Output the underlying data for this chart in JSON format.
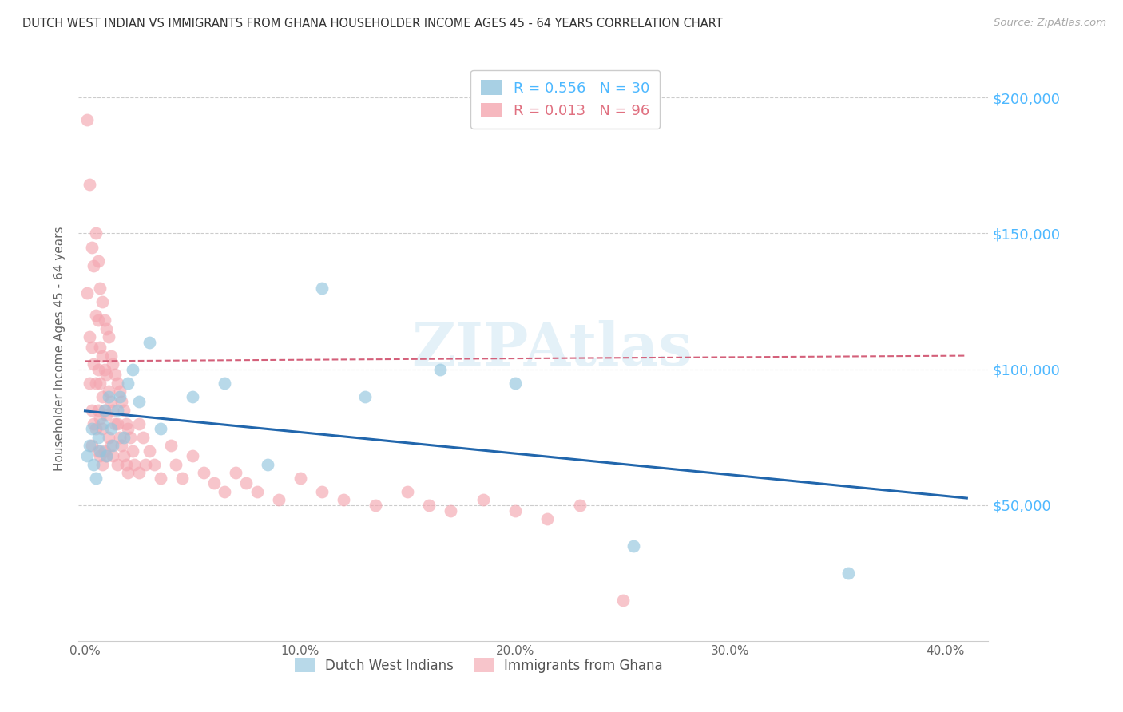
{
  "title": "DUTCH WEST INDIAN VS IMMIGRANTS FROM GHANA HOUSEHOLDER INCOME AGES 45 - 64 YEARS CORRELATION CHART",
  "source": "Source: ZipAtlas.com",
  "ylabel": "Householder Income Ages 45 - 64 years",
  "ytick_labels": [
    "$50,000",
    "$100,000",
    "$150,000",
    "$200,000"
  ],
  "ytick_vals": [
    50000,
    100000,
    150000,
    200000
  ],
  "ylim": [
    0,
    215000
  ],
  "xlim": [
    -0.003,
    0.42
  ],
  "blue_color": "#92c5de",
  "pink_color": "#f4a6b0",
  "blue_line_color": "#2166ac",
  "pink_line_color": "#d4607a",
  "watermark": "ZIPAtlas",
  "blue_R": 0.556,
  "blue_N": 30,
  "pink_R": 0.013,
  "pink_N": 96,
  "blue_x": [
    0.001,
    0.002,
    0.003,
    0.004,
    0.005,
    0.006,
    0.007,
    0.008,
    0.009,
    0.01,
    0.011,
    0.012,
    0.013,
    0.015,
    0.016,
    0.018,
    0.02,
    0.022,
    0.025,
    0.03,
    0.035,
    0.05,
    0.065,
    0.085,
    0.11,
    0.13,
    0.165,
    0.2,
    0.255,
    0.355
  ],
  "blue_y": [
    68000,
    72000,
    78000,
    65000,
    60000,
    75000,
    70000,
    80000,
    85000,
    68000,
    90000,
    78000,
    72000,
    85000,
    90000,
    75000,
    95000,
    100000,
    88000,
    110000,
    78000,
    90000,
    95000,
    65000,
    130000,
    90000,
    100000,
    95000,
    35000,
    25000
  ],
  "pink_x": [
    0.001,
    0.001,
    0.002,
    0.002,
    0.002,
    0.003,
    0.003,
    0.003,
    0.003,
    0.004,
    0.004,
    0.004,
    0.005,
    0.005,
    0.005,
    0.005,
    0.006,
    0.006,
    0.006,
    0.006,
    0.006,
    0.007,
    0.007,
    0.007,
    0.007,
    0.007,
    0.008,
    0.008,
    0.008,
    0.008,
    0.008,
    0.009,
    0.009,
    0.009,
    0.009,
    0.01,
    0.01,
    0.01,
    0.01,
    0.011,
    0.011,
    0.011,
    0.012,
    0.012,
    0.012,
    0.013,
    0.013,
    0.013,
    0.014,
    0.014,
    0.015,
    0.015,
    0.015,
    0.016,
    0.016,
    0.017,
    0.017,
    0.018,
    0.018,
    0.019,
    0.019,
    0.02,
    0.02,
    0.021,
    0.022,
    0.023,
    0.025,
    0.025,
    0.027,
    0.028,
    0.03,
    0.032,
    0.035,
    0.04,
    0.042,
    0.045,
    0.05,
    0.055,
    0.06,
    0.065,
    0.07,
    0.075,
    0.08,
    0.09,
    0.1,
    0.11,
    0.12,
    0.135,
    0.15,
    0.16,
    0.17,
    0.185,
    0.2,
    0.215,
    0.23,
    0.25
  ],
  "pink_y": [
    192000,
    128000,
    168000,
    112000,
    95000,
    145000,
    108000,
    85000,
    72000,
    138000,
    102000,
    80000,
    150000,
    120000,
    95000,
    78000,
    140000,
    118000,
    100000,
    85000,
    70000,
    130000,
    108000,
    95000,
    82000,
    68000,
    125000,
    105000,
    90000,
    78000,
    65000,
    118000,
    100000,
    85000,
    70000,
    115000,
    98000,
    83000,
    68000,
    112000,
    92000,
    75000,
    105000,
    88000,
    72000,
    102000,
    85000,
    68000,
    98000,
    80000,
    95000,
    80000,
    65000,
    92000,
    75000,
    88000,
    72000,
    85000,
    68000,
    80000,
    65000,
    78000,
    62000,
    75000,
    70000,
    65000,
    80000,
    62000,
    75000,
    65000,
    70000,
    65000,
    60000,
    72000,
    65000,
    60000,
    68000,
    62000,
    58000,
    55000,
    62000,
    58000,
    55000,
    52000,
    60000,
    55000,
    52000,
    50000,
    55000,
    50000,
    48000,
    52000,
    48000,
    45000,
    50000,
    15000
  ]
}
